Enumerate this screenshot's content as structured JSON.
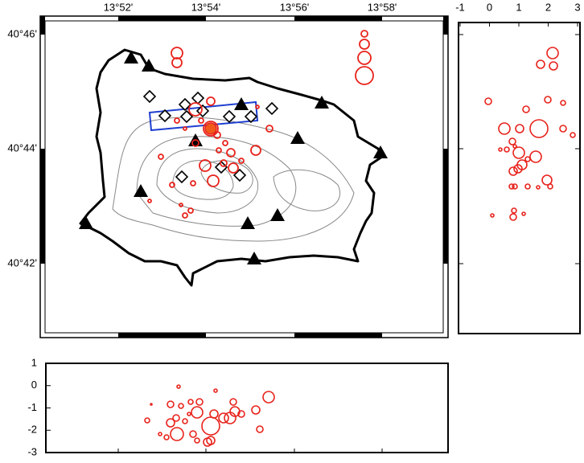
{
  "map": {
    "lon_labels": [
      "13°52'",
      "13°54'",
      "13°56'",
      "13°58'"
    ],
    "lat_labels": [
      "40°46'",
      "40°44'",
      "40°42'"
    ]
  },
  "east_section": {
    "xlim": [
      -1,
      3
    ],
    "xticks": [
      -1,
      0,
      1,
      2,
      3
    ]
  },
  "south_section": {
    "ylim": [
      -3,
      1
    ],
    "yticks": [
      1,
      0,
      -1,
      -2,
      -3
    ]
  }
}
